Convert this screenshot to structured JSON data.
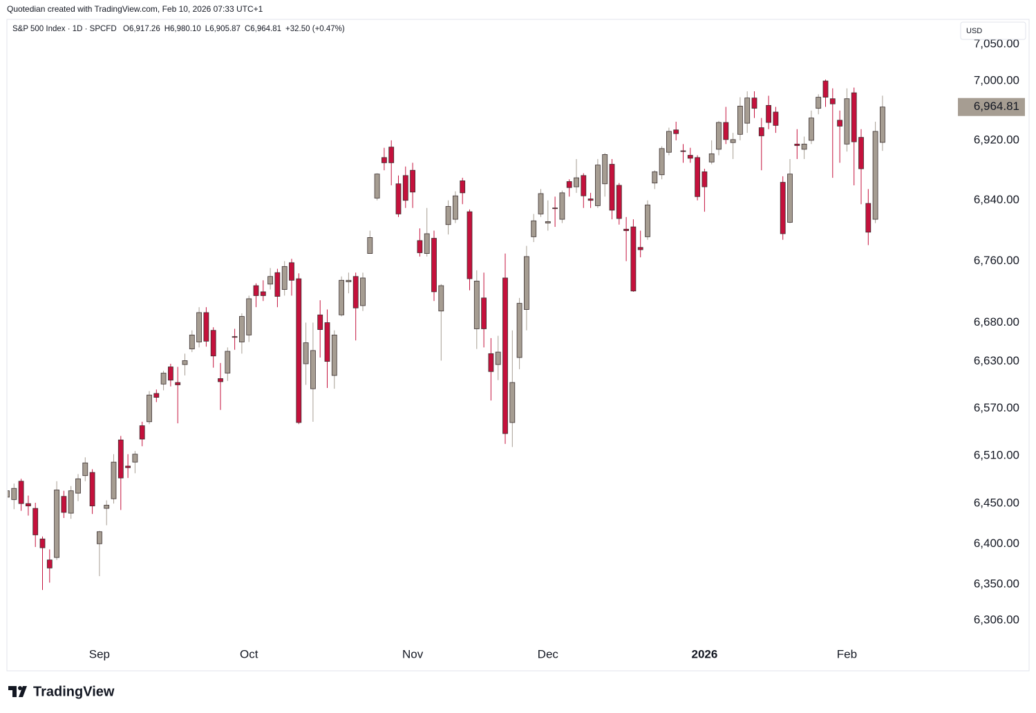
{
  "header": {
    "caption": "Quotedian created with TradingView.com, Feb 10, 2026 07:33 UTC+1"
  },
  "chart_data": {
    "type": "candlestick",
    "title": "S&P 500 Index · 1D · SPCFD",
    "ohlc_legend": [
      "O6,917.26",
      "H6,980.10",
      "L6,905.87",
      "C6,964.81",
      "+32.50 (+0.47%)"
    ],
    "currency": "USD",
    "log_scale": true,
    "grid": false,
    "up_color": "#a69d92",
    "down_color": "#c4113c",
    "categories": [
      null,
      null,
      null,
      null,
      null,
      null,
      null,
      null,
      null,
      null,
      null,
      null,
      null,
      "Sep",
      null,
      null,
      null,
      null,
      null,
      null,
      null,
      null,
      null,
      null,
      null,
      null,
      null,
      null,
      null,
      null,
      null,
      null,
      null,
      null,
      "Oct",
      null,
      null,
      null,
      null,
      null,
      null,
      null,
      null,
      null,
      null,
      null,
      null,
      null,
      null,
      null,
      null,
      null,
      null,
      null,
      null,
      null,
      null,
      "Nov",
      null,
      null,
      null,
      null,
      null,
      null,
      null,
      null,
      null,
      null,
      null,
      null,
      null,
      null,
      null,
      null,
      null,
      null,
      "Dec",
      null,
      null,
      null,
      null,
      null,
      null,
      null,
      null,
      null,
      null,
      null,
      null,
      null,
      null,
      null,
      null,
      null,
      null,
      null,
      null,
      null,
      "2026",
      null,
      null,
      null,
      null,
      null,
      null,
      null,
      null,
      null,
      null,
      null,
      null,
      null,
      null,
      null,
      null,
      null,
      null,
      null,
      "Feb",
      null,
      null,
      null,
      null,
      null
    ],
    "open": [
      6458,
      6455,
      6478,
      6450,
      6444,
      6406,
      6380,
      6383,
      6459,
      6438,
      6463,
      6485,
      6489,
      6400,
      6444,
      6456,
      6530,
      6497,
      6502,
      6548,
      6553,
      6589,
      6601,
      6623,
      6603,
      6626,
      6646,
      6655,
      6693,
      6670,
      6608,
      6615,
      6662,
      6655,
      6664,
      6728,
      6720,
      6730,
      6745,
      6723,
      6758,
      6737,
      6627,
      6595,
      6690,
      6680,
      6612,
      6690,
      6733,
      6740,
      6702,
      6770,
      6843,
      6897,
      6911,
      6862,
      6873,
      6880,
      6787,
      6770,
      6790,
      6695,
      6808,
      6815,
      6866,
      6825,
      6672,
      6712,
      6640,
      6626,
      6738,
      6552,
      6635,
      6697,
      6792,
      6822,
      6810,
      6830,
      6815,
      6865,
      6858,
      6873,
      6842,
      6833,
      6862,
      6888,
      6860,
      6802,
      6805,
      6778,
      6792,
      6863,
      6874,
      6904,
      6934,
      6906,
      6900,
      6897,
      6878,
      6891,
      6908,
      6944,
      6917,
      6928,
      6943,
      6977,
      6937,
      6967,
      6958,
      6864,
      6811,
      6915,
      6908,
      6920,
      6963,
      7000,
      6976,
      6947,
      6915,
      6984,
      6924,
      6836,
      6815,
      6917.26
    ],
    "high": [
      6480,
      6475,
      6481,
      6460,
      6451,
      6409,
      6393,
      6478,
      6466,
      6472,
      6487,
      6508,
      6493,
      6416,
      6454,
      6512,
      6535,
      6512,
      6516,
      6553,
      6592,
      6594,
      6618,
      6627,
      6623,
      6640,
      6670,
      6700,
      6700,
      6674,
      6628,
      6648,
      6672,
      6692,
      6715,
      6731,
      6735,
      6751,
      6750,
      6760,
      6763,
      6744,
      6680,
      6680,
      6709,
      6697,
      6670,
      6740,
      6745,
      6745,
      6745,
      6800,
      6876,
      6910,
      6920,
      6873,
      6885,
      6890,
      6803,
      6830,
      6800,
      6730,
      6840,
      6852,
      6870,
      6828,
      6748,
      6745,
      6660,
      6663,
      6770,
      6670,
      6712,
      6780,
      6822,
      6855,
      6840,
      6845,
      6853,
      6868,
      6895,
      6876,
      6850,
      6895,
      6903,
      6895,
      6863,
      6818,
      6815,
      6800,
      6840,
      6880,
      6912,
      6937,
      6945,
      6915,
      6910,
      6900,
      6882,
      6920,
      6946,
      6965,
      6930,
      6978,
      6986,
      6986,
      6950,
      6980,
      6965,
      6872,
      6895,
      6935,
      6925,
      6960,
      6982,
      7002,
      6990,
      6960,
      6990,
      6991,
      6935,
      6855,
      6945,
      6980.1
    ],
    "low": [
      6445,
      6443,
      6441,
      6435,
      6396,
      6343,
      6352,
      6380,
      6432,
      6431,
      6453,
      6478,
      6437,
      6360,
      6423,
      6450,
      6442,
      6482,
      6488,
      6522,
      6550,
      6578,
      6593,
      6598,
      6551,
      6612,
      6642,
      6648,
      6649,
      6622,
      6568,
      6605,
      6645,
      6640,
      6655,
      6700,
      6708,
      6723,
      6700,
      6715,
      6715,
      6550,
      6600,
      6553,
      6635,
      6596,
      6595,
      6688,
      6718,
      6657,
      6695,
      6770,
      6840,
      6880,
      6860,
      6818,
      6830,
      6830,
      6766,
      6766,
      6708,
      6631,
      6795,
      6810,
      6835,
      6722,
      6646,
      6648,
      6580,
      6606,
      6525,
      6521,
      6620,
      6670,
      6785,
      6818,
      6800,
      6805,
      6810,
      6845,
      6850,
      6830,
      6830,
      6830,
      6845,
      6815,
      6808,
      6760,
      6720,
      6765,
      6788,
      6855,
      6868,
      6900,
      6920,
      6890,
      6890,
      6840,
      6825,
      6888,
      6900,
      6915,
      6895,
      6920,
      6930,
      6950,
      6880,
      6935,
      6930,
      6788,
      6810,
      6895,
      6895,
      6915,
      6955,
      6965,
      6870,
      6890,
      6905,
      6860,
      6835,
      6781,
      6810,
      6905.87
    ],
    "close": [
      6466,
      6469,
      6450,
      6447,
      6411,
      6395,
      6370,
      6467,
      6439,
      6466,
      6481,
      6501,
      6447,
      6415,
      6448,
      6502,
      6482,
      6495,
      6512,
      6531,
      6587,
      6584,
      6615,
      6606,
      6600,
      6631,
      6664,
      6693,
      6656,
      6637,
      6604,
      6643,
      6661,
      6688,
      6711,
      6715,
      6715,
      6740,
      6714,
      6753,
      6735,
      6552,
      6654,
      6644,
      6671,
      6630,
      6664,
      6735,
      6735,
      6699,
      6738,
      6791,
      6875,
      6890,
      6890,
      6822,
      6840,
      6851,
      6771,
      6796,
      6720,
      6728,
      6832,
      6846,
      6850,
      6737,
      6734,
      6672,
      6617,
      6642,
      6538,
      6603,
      6705,
      6766,
      6813,
      6849,
      6812,
      6829,
      6850,
      6857,
      6870,
      6846,
      6840,
      6887,
      6901,
      6827,
      6816,
      6800,
      6721,
      6775,
      6834,
      6878,
      6909,
      6932,
      6929,
      6905,
      6896,
      6845,
      6858,
      6902,
      6944,
      6921,
      6921,
      6966,
      6977,
      6963,
      6926,
      6944,
      6940,
      6796,
      6875,
      6913,
      6915,
      6950,
      6978,
      6978,
      6969,
      6939,
      6976,
      6918,
      6882,
      6798,
      6932,
      6964.81
    ],
    "last_price_label": "6,964.81",
    "ylim": [
      6278,
      7084
    ],
    "yticks": [
      {
        "value": 7050,
        "label": "7,050.00"
      },
      {
        "value": 7000,
        "label": "7,000.00"
      },
      {
        "value": 6920,
        "label": "6,920.00"
      },
      {
        "value": 6840,
        "label": "6,840.00"
      },
      {
        "value": 6760,
        "label": "6,760.00"
      },
      {
        "value": 6680,
        "label": "6,680.00"
      },
      {
        "value": 6630,
        "label": "6,630.00"
      },
      {
        "value": 6570,
        "label": "6,570.00"
      },
      {
        "value": 6510,
        "label": "6,510.00"
      },
      {
        "value": 6450,
        "label": "6,450.00"
      },
      {
        "value": 6400,
        "label": "6,400.00"
      },
      {
        "value": 6350,
        "label": "6,350.00"
      },
      {
        "value": 6306,
        "label": "6,306.00"
      }
    ]
  },
  "footer": {
    "brand": "TradingView"
  }
}
